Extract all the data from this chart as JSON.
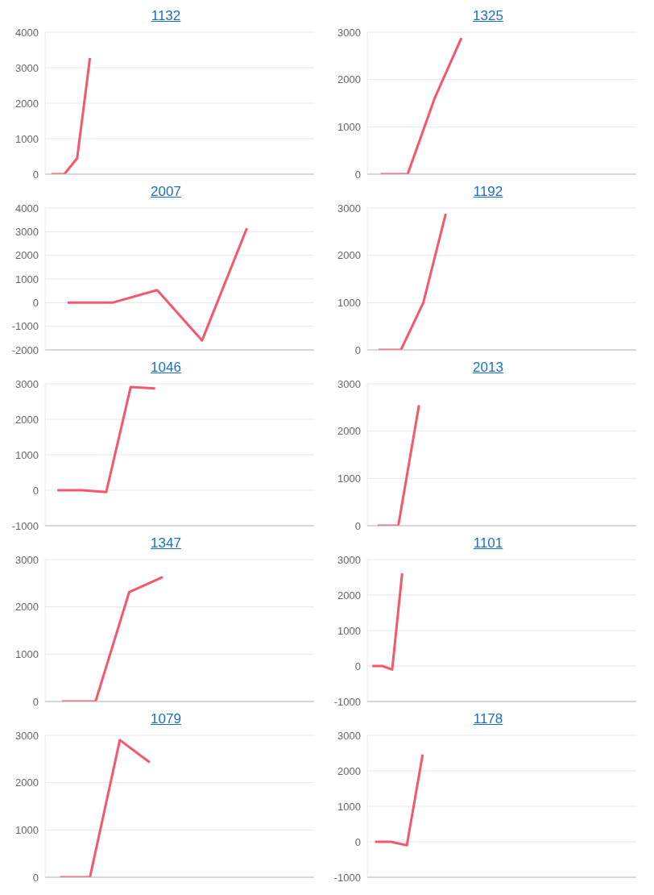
{
  "chart_data": [
    {
      "type": "line",
      "title": "1132",
      "categories": [
        null,
        null,
        null,
        null,
        null,
        null,
        null,
        null,
        null,
        null,
        null,
        null,
        null,
        null,
        null,
        null,
        null,
        null,
        null,
        null,
        null
      ],
      "series": [
        {
          "color": "#f5576c",
          "values": [
            0,
            0,
            450,
            3270,
            null,
            null,
            null,
            null,
            null,
            null,
            null,
            null,
            null,
            null,
            null,
            null,
            null,
            null,
            null,
            null,
            null
          ]
        }
      ],
      "ylim": [
        0,
        4000
      ],
      "yticks": [
        0,
        1000,
        2000,
        3000,
        4000
      ],
      "grid": "y",
      "tick_labels": "y",
      "marker": "none",
      "line_style": "solid"
    },
    {
      "type": "line",
      "title": "1325",
      "categories": [
        null,
        null,
        null,
        null,
        null,
        null,
        null,
        null,
        null,
        null
      ],
      "series": [
        {
          "color": "#f5576c",
          "values": [
            0,
            0,
            1600,
            2880,
            null,
            null,
            null,
            null,
            null,
            null
          ]
        }
      ],
      "ylim": [
        0,
        3000
      ],
      "yticks": [
        0,
        1000,
        2000,
        3000
      ],
      "grid": "y",
      "tick_labels": "y",
      "marker": "none",
      "line_style": "solid"
    },
    {
      "type": "line",
      "title": "2007",
      "categories": [
        null,
        null,
        null,
        null,
        null,
        null
      ],
      "series": [
        {
          "color": "#f5576c",
          "values": [
            0,
            0,
            530,
            -1600,
            3150,
            null
          ]
        }
      ],
      "ylim": [
        -2000,
        4000
      ],
      "yticks": [
        -2000,
        -1000,
        0,
        1000,
        2000,
        3000,
        4000
      ],
      "grid": "y",
      "tick_labels": "y",
      "marker": "none",
      "line_style": "solid"
    },
    {
      "type": "line",
      "title": "1192",
      "categories": [
        null,
        null,
        null,
        null,
        null,
        null,
        null,
        null,
        null,
        null,
        null,
        null
      ],
      "series": [
        {
          "color": "#f5576c",
          "values": [
            0,
            0,
            1000,
            2880,
            null,
            null,
            null,
            null,
            null,
            null,
            null,
            null
          ]
        }
      ],
      "ylim": [
        0,
        3000
      ],
      "yticks": [
        0,
        1000,
        2000,
        3000
      ],
      "grid": "y",
      "tick_labels": "y",
      "marker": "none",
      "line_style": "solid"
    },
    {
      "type": "line",
      "title": "1046",
      "categories": [
        null,
        null,
        null,
        null,
        null,
        null,
        null,
        null,
        null,
        null,
        null
      ],
      "series": [
        {
          "color": "#f5576c",
          "values": [
            0,
            0,
            -50,
            2910,
            2870,
            null,
            null,
            null,
            null,
            null,
            null
          ]
        }
      ],
      "ylim": [
        -1000,
        3000
      ],
      "yticks": [
        -1000,
        0,
        1000,
        2000,
        3000
      ],
      "grid": "y",
      "tick_labels": "y",
      "marker": "none",
      "line_style": "solid"
    },
    {
      "type": "line",
      "title": "2013",
      "categories": [
        null,
        null,
        null,
        null,
        null,
        null,
        null,
        null,
        null,
        null,
        null,
        null,
        null
      ],
      "series": [
        {
          "color": "#f5576c",
          "values": [
            0,
            0,
            2550,
            null,
            null,
            null,
            null,
            null,
            null,
            null,
            null,
            null,
            null
          ]
        }
      ],
      "ylim": [
        0,
        3000
      ],
      "yticks": [
        0,
        1000,
        2000,
        3000
      ],
      "grid": "y",
      "tick_labels": "y",
      "marker": "none",
      "line_style": "solid"
    },
    {
      "type": "line",
      "title": "1347",
      "categories": [
        null,
        null,
        null,
        null,
        null,
        null,
        null,
        null
      ],
      "series": [
        {
          "color": "#f5576c",
          "values": [
            0,
            0,
            2310,
            2630,
            null,
            null,
            null,
            null
          ]
        }
      ],
      "ylim": [
        0,
        3000
      ],
      "yticks": [
        0,
        1000,
        2000,
        3000
      ],
      "grid": "y",
      "tick_labels": "y",
      "marker": "none",
      "line_style": "solid"
    },
    {
      "type": "line",
      "title": "1101",
      "categories": [
        null,
        null,
        null,
        null,
        null,
        null,
        null,
        null,
        null,
        null,
        null,
        null,
        null,
        null,
        null,
        null,
        null,
        null,
        null,
        null,
        null,
        null,
        null,
        null,
        null,
        null,
        null
      ],
      "series": [
        {
          "color": "#f5576c",
          "values": [
            0,
            0,
            -100,
            2610,
            null,
            null,
            null,
            null,
            null,
            null,
            null,
            null,
            null,
            null,
            null,
            null,
            null,
            null,
            null,
            null,
            null,
            null,
            null,
            null,
            null,
            null,
            null
          ]
        }
      ],
      "ylim": [
        -1000,
        3000
      ],
      "yticks": [
        -1000,
        0,
        1000,
        2000,
        3000
      ],
      "grid": "y",
      "tick_labels": "y",
      "marker": "none",
      "line_style": "solid"
    },
    {
      "type": "line",
      "title": "1079",
      "categories": [
        null,
        null,
        null,
        null,
        null,
        null,
        null,
        null,
        null
      ],
      "series": [
        {
          "color": "#f5576c",
          "values": [
            0,
            0,
            2900,
            2430,
            null,
            null,
            null,
            null,
            null
          ]
        }
      ],
      "ylim": [
        0,
        3000
      ],
      "yticks": [
        0,
        1000,
        2000,
        3000
      ],
      "grid": "y",
      "tick_labels": "y",
      "marker": "none",
      "line_style": "solid"
    },
    {
      "type": "line",
      "title": "1178",
      "categories": [
        null,
        null,
        null,
        null,
        null,
        null,
        null,
        null,
        null,
        null,
        null,
        null,
        null,
        null,
        null,
        null,
        null
      ],
      "series": [
        {
          "color": "#f5576c",
          "values": [
            0,
            0,
            -100,
            2460,
            null,
            null,
            null,
            null,
            null,
            null,
            null,
            null,
            null,
            null,
            null,
            null,
            null
          ]
        }
      ],
      "ylim": [
        -1000,
        3000
      ],
      "yticks": [
        -1000,
        0,
        1000,
        2000,
        3000
      ],
      "grid": "y",
      "tick_labels": "y",
      "marker": "none",
      "line_style": "solid"
    }
  ]
}
